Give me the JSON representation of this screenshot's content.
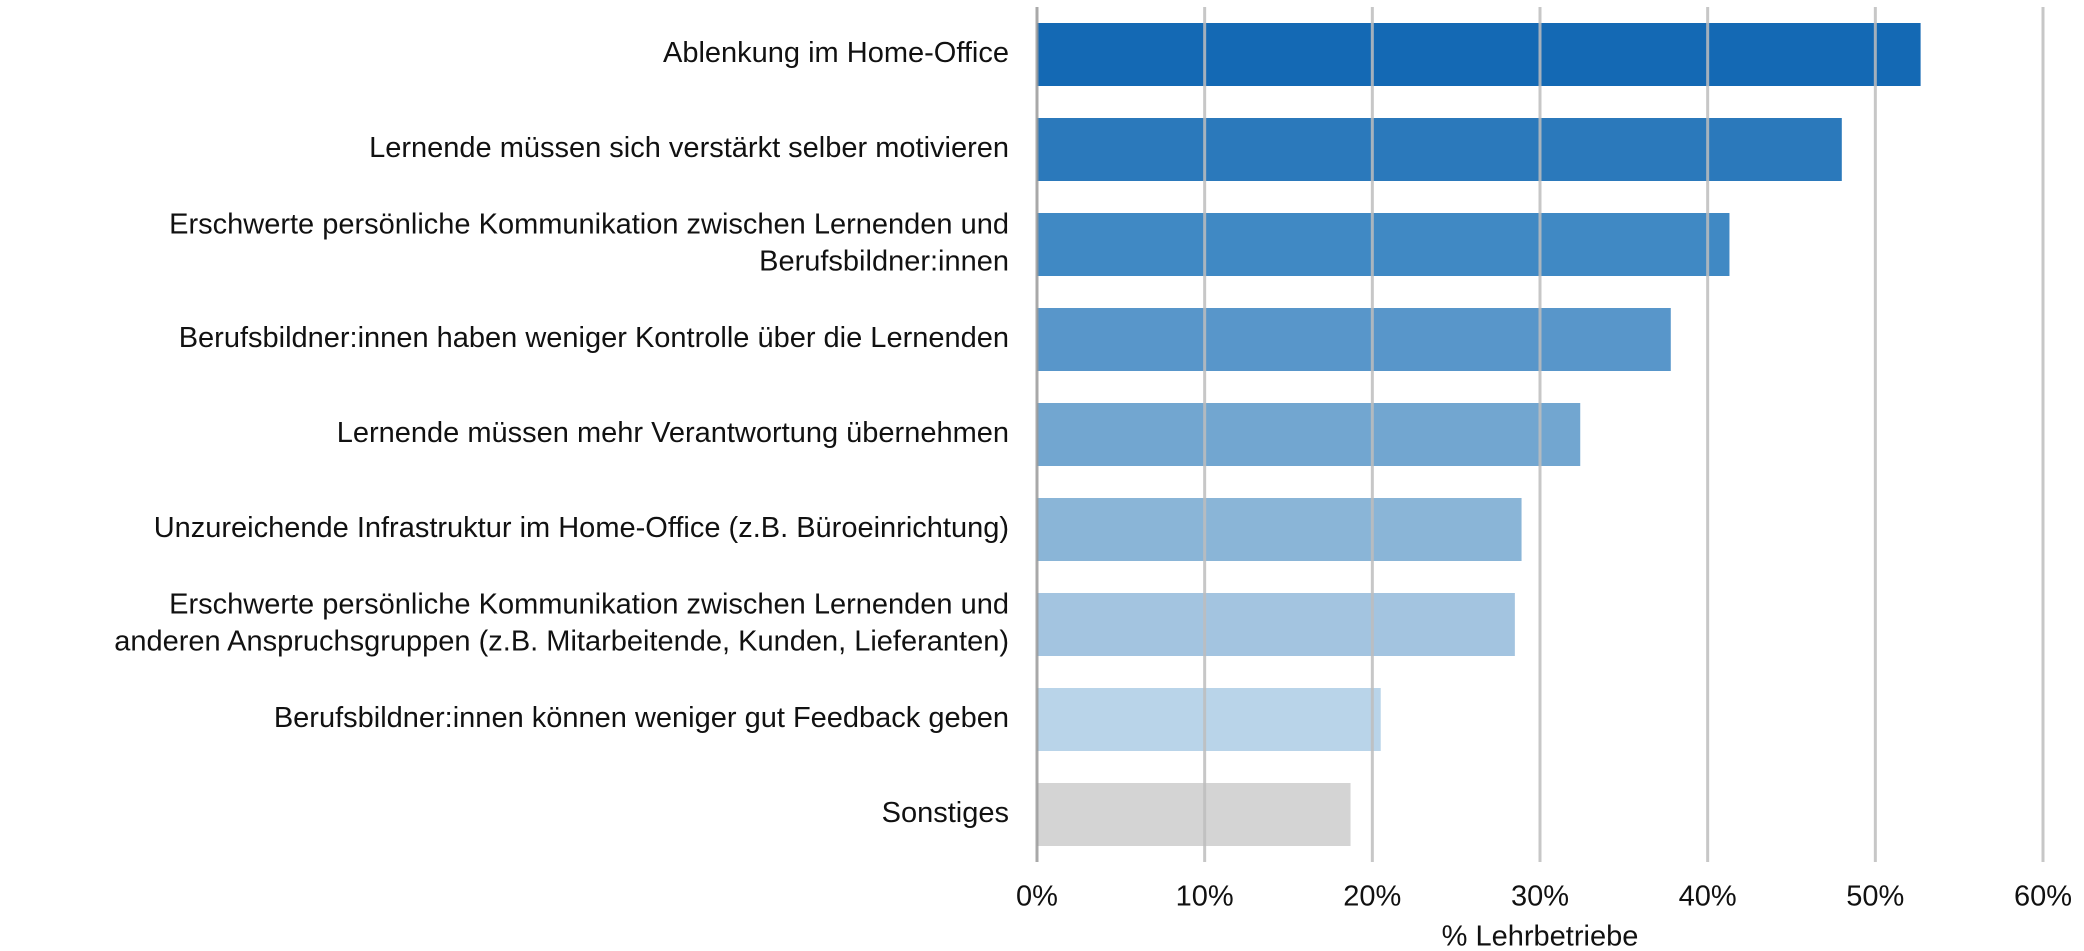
{
  "chart_data": {
    "type": "barh",
    "categories": [
      [
        "Ablenkung im Home-Office"
      ],
      [
        "Lernende müssen sich verstärkt selber motivieren"
      ],
      [
        "Erschwerte persönliche Kommunikation zwischen Lernenden und",
        "Berufsbildner:innen"
      ],
      [
        "Berufsbildner:innen haben weniger Kontrolle über die Lernenden"
      ],
      [
        "Lernende müssen mehr Verantwortung übernehmen"
      ],
      [
        "Unzureichende Infrastruktur im Home-Office (z.B. Büroeinrichtung)"
      ],
      [
        "Erschwerte persönliche Kommunikation zwischen Lernenden und",
        "anderen Anspruchsgruppen (z.B. Mitarbeitende, Kunden, Lieferanten)"
      ],
      [
        "Berufsbildner:innen können weniger gut Feedback geben"
      ],
      [
        "Sonstiges"
      ]
    ],
    "values": [
      52.7,
      48.0,
      41.3,
      37.8,
      32.4,
      28.9,
      28.5,
      20.5,
      18.7
    ],
    "colors": [
      "#1469b4",
      "#2b79bb",
      "#4089c4",
      "#5896ca",
      "#72a6d0",
      "#8ab5d7",
      "#a3c4e0",
      "#b9d4e9",
      "#d4d4d4"
    ],
    "xlabel": "% Lehrbetriebe",
    "xlim": [
      0,
      60
    ],
    "xticks": [
      {
        "value": 0,
        "label": "0%"
      },
      {
        "value": 10,
        "label": "10%"
      },
      {
        "value": 20,
        "label": "20%"
      },
      {
        "value": 30,
        "label": "30%"
      },
      {
        "value": 40,
        "label": "40%"
      },
      {
        "value": 50,
        "label": "50%"
      },
      {
        "value": 60,
        "label": "60%"
      }
    ],
    "grid": true
  }
}
